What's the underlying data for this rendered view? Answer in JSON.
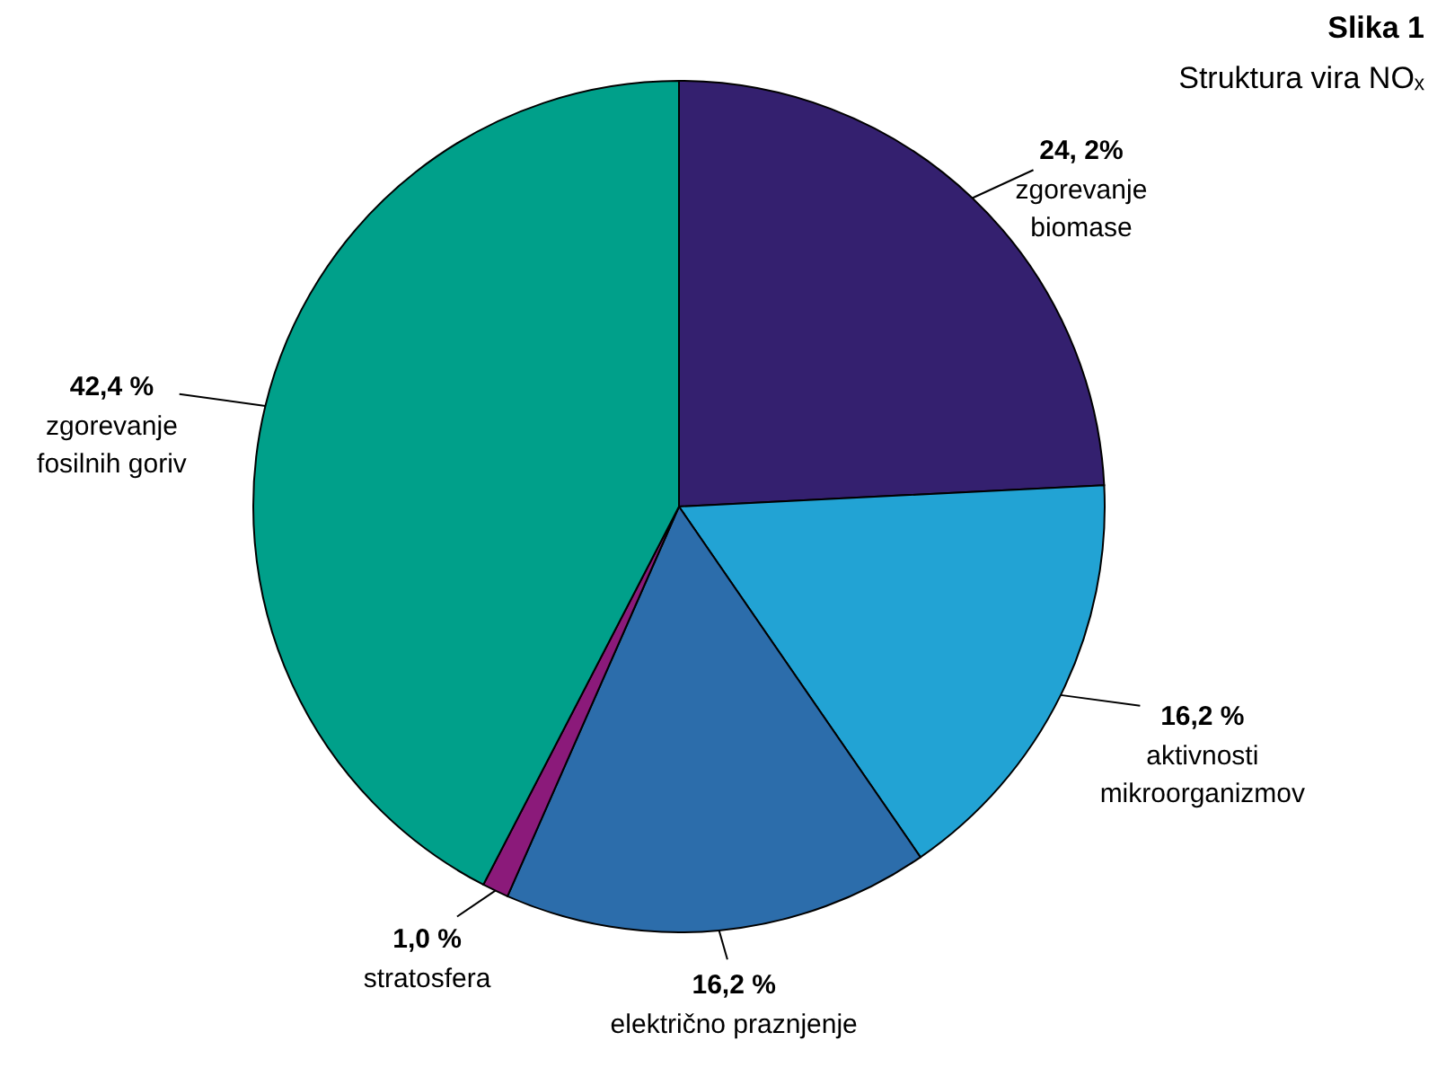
{
  "chart_data": {
    "type": "pie",
    "title": "Slika 1",
    "subtitle": "Struktura vira NOₓ",
    "categories": [
      "zgorevanje\nbiomase",
      "aktivnosti\nmikroorganizmov",
      "električno praznjenje",
      "stratosfera",
      "zgorevanje\nfosilnih goriv"
    ],
    "values": [
      24.2,
      16.2,
      16.2,
      1.0,
      42.4
    ],
    "value_labels": [
      "24, 2%",
      "16,2 %",
      "16,2 %",
      "1,0 %",
      "42,4 %"
    ],
    "colors": [
      "#34206f",
      "#22a3d4",
      "#2c6dab",
      "#8b1a7a",
      "#00a08a"
    ]
  }
}
